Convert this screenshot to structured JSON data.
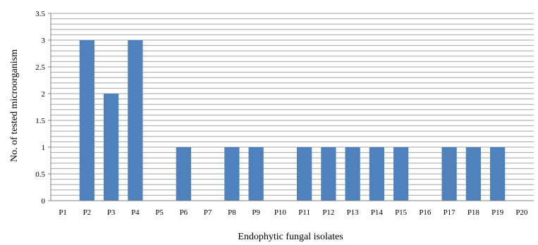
{
  "chart_data": {
    "type": "bar",
    "categories": [
      "P1",
      "P2",
      "P3",
      "P4",
      "P5",
      "P6",
      "P7",
      "P8",
      "P9",
      "P10",
      "P11",
      "P12",
      "P13",
      "P14",
      "P15",
      "P16",
      "P17",
      "P18",
      "P19",
      "P20"
    ],
    "values": [
      0,
      3,
      2,
      3,
      0,
      1,
      0,
      1,
      1,
      0,
      1,
      1,
      1,
      1,
      1,
      0,
      1,
      1,
      1,
      0
    ],
    "xlabel": "Endophytic fungal isolates",
    "ylabel": "No. of tested microorganism",
    "ylim": [
      0,
      3.5
    ],
    "yticks": [
      "0",
      "0.5",
      "1",
      "1.5",
      "2",
      "2.5",
      "3",
      "3.5"
    ],
    "grid": true,
    "colors": {
      "bar": "#4f81bd",
      "grid": "#a6a6a6",
      "axis": "#808080"
    }
  }
}
